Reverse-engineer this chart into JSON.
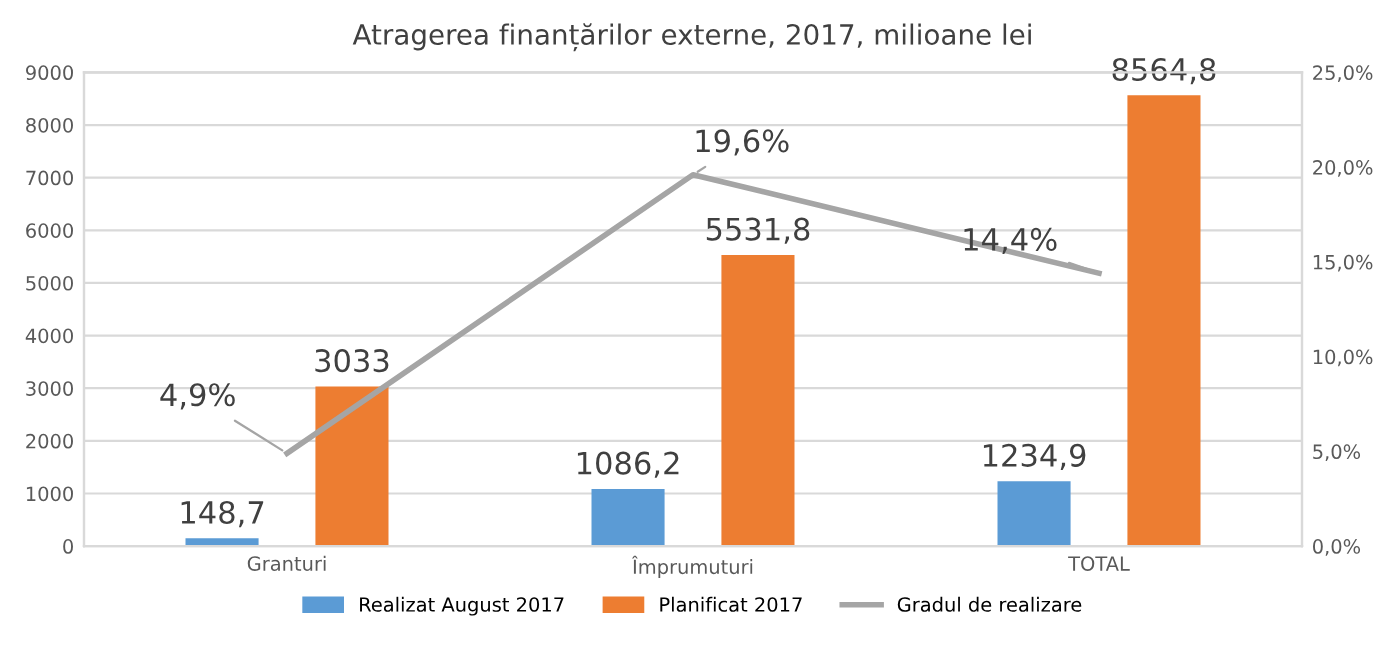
{
  "chart_data": {
    "type": "bar",
    "title": "Atragerea finanțărilor externe, 2017, milioane lei",
    "categories": [
      "Granturi",
      "Împrumuturi",
      "TOTAL"
    ],
    "series": [
      {
        "name": "Realizat August 2017",
        "color": "#5b9bd5",
        "values": [
          148.7,
          1086.2,
          1234.9
        ],
        "value_labels": [
          "148,7",
          "1086,2",
          "1234,9"
        ]
      },
      {
        "name": "Planificat 2017",
        "color": "#ed7d31",
        "values": [
          3033,
          5531.8,
          8564.8
        ],
        "value_labels": [
          "3033",
          "5531,8",
          "8564,8"
        ]
      },
      {
        "name": "Gradul de realizare",
        "type": "line",
        "axis": "y2",
        "color": "#a5a5a5",
        "values": [
          4.9,
          19.6,
          14.4
        ],
        "value_labels": [
          "4,9%",
          "19,6%",
          "14,4%"
        ]
      }
    ],
    "ylim": [
      0,
      9000
    ],
    "yticks": [
      0,
      1000,
      2000,
      3000,
      4000,
      5000,
      6000,
      7000,
      8000,
      9000
    ],
    "y2lim": [
      0,
      25
    ],
    "y2ticks": [
      {
        "value": 0,
        "label": "0,0%"
      },
      {
        "value": 5,
        "label": "5,0%"
      },
      {
        "value": 10,
        "label": "10,0%"
      },
      {
        "value": 15,
        "label": "15,0%"
      },
      {
        "value": 20,
        "label": "20,0%"
      },
      {
        "value": 25,
        "label": "25,0%"
      }
    ],
    "grid": "y",
    "legend": "bottom"
  }
}
